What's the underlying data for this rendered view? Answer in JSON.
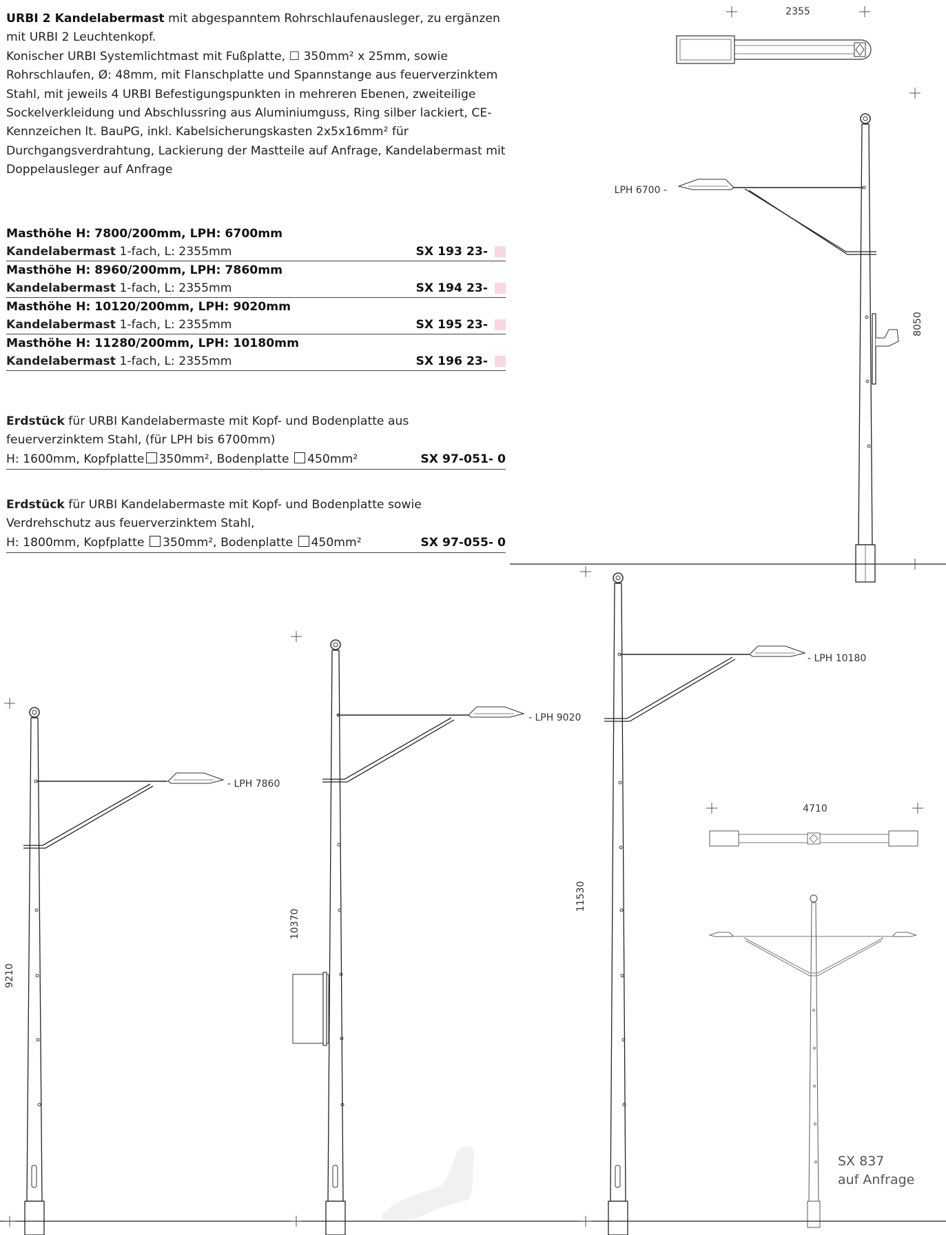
{
  "intro": {
    "title": "URBI 2 Kandelabermast",
    "title_rest": " mit abgespanntem Rohrschlaufenausleger, zu ergänzen mit URBI 2 Leuchtenkopf.",
    "text": "Konischer URBI Systemlichtmast mit Fußplatte, ☐ 350mm² x 25mm, sowie Rohrschlaufen, Ø: 48mm, mit Flanschplatte und Spannstange aus feuerverzinktem Stahl, mit jeweils 4 URBI Befestigungspunkten in mehreren Ebenen, zweiteilige Sockelverkleidung und Abschlussring aus Aluminiumguss, Ring silber lackiert, CE-Kennzeichen lt. BauPG, inkl. Kabelsicherungskasten 2x5x16mm² für Durchgangsverdrahtung, Lackierung der Mastteile auf Anfrage, Kandelabermast mit Doppelausleger auf Anfrage"
  },
  "products": [
    {
      "head": "Masthöhe H: 7800/200mm, LPH: 6700mm",
      "name": "Kandelabermast",
      "desc": " 1-fach, L: 2355mm",
      "code": "SX 193 23-"
    },
    {
      "head": "Masthöhe H: 8960/200mm, LPH: 7860mm",
      "name": "Kandelabermast",
      "desc": " 1-fach, L: 2355mm",
      "code": "SX 194 23-"
    },
    {
      "head": "Masthöhe H: 10120/200mm, LPH: 9020mm",
      "name": "Kandelabermast",
      "desc": " 1-fach, L: 2355mm",
      "code": "SX 195 23-"
    },
    {
      "head": "Masthöhe H: 11280/200mm, LPH: 10180mm",
      "name": "Kandelabermast",
      "desc": " 1-fach, L: 2355mm",
      "code": "SX 196 23-"
    }
  ],
  "erd1": {
    "name": "Erdstück",
    "text": " für URBI Kandelabermaste mit Kopf- und Bodenplatte aus feuerverzinktem Stahl, (für LPH bis 6700mm)",
    "spec_a": "H: 1600mm, Kopfplatte",
    "spec_b": "350mm², Bodenplatte",
    "spec_c": "450mm²",
    "code": "SX 97-051- 0"
  },
  "erd2": {
    "name": "Erdstück",
    "text": " für URBI Kandelabermaste mit Kopf- und Bodenplatte sowie Verdrehschutz aus feuerverzinktem Stahl,",
    "spec_a": "H: 1800mm, Kopfplatte",
    "spec_b": "350mm², Bodenplatte",
    "spec_c": "450mm²",
    "code": "SX 97-055- 0"
  },
  "drawing_labels": {
    "top_width": "2355",
    "top_height": "8050",
    "top_lph": "LPH 6700 -",
    "d1_height": "9210",
    "d1_lph": "- LPH 7860",
    "d2_height": "10370",
    "d2_lph": "- LPH 9020",
    "d3_height": "11530",
    "d3_lph": "- LPH 10180",
    "double_width": "4710"
  },
  "note": {
    "line1": "SX 837",
    "line2": "auf Anfrage"
  },
  "colors": {
    "swatch": "#f7d6e6"
  }
}
